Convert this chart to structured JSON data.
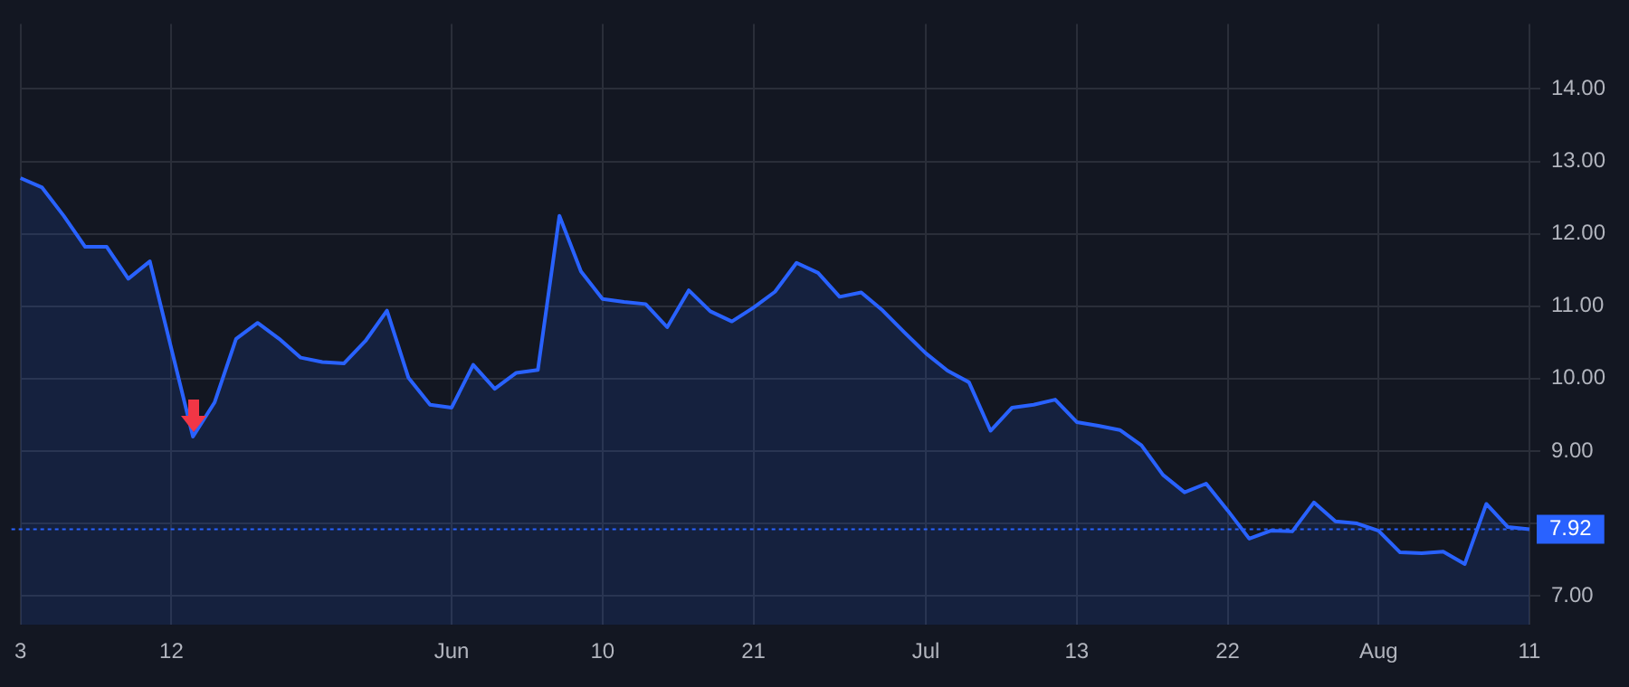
{
  "chart_data": {
    "type": "area",
    "categories": [
      "3",
      null,
      null,
      null,
      null,
      null,
      null,
      "12",
      null,
      null,
      null,
      null,
      null,
      null,
      null,
      null,
      null,
      null,
      null,
      null,
      "Jun",
      null,
      null,
      null,
      null,
      null,
      null,
      "10",
      null,
      null,
      null,
      null,
      null,
      null,
      "21",
      null,
      null,
      null,
      null,
      null,
      null,
      null,
      "Jul",
      null,
      null,
      null,
      null,
      null,
      null,
      "13",
      null,
      null,
      null,
      null,
      null,
      null,
      "22",
      null,
      null,
      null,
      null,
      null,
      null,
      "Aug",
      null,
      null,
      null,
      null,
      null,
      null,
      "11"
    ],
    "series": [
      {
        "color": "#2962ff",
        "values": [
          12.77,
          12.64,
          12.25,
          11.82,
          11.82,
          11.38,
          11.62,
          10.41,
          9.2,
          9.67,
          10.55,
          10.77,
          10.55,
          10.29,
          10.23,
          10.21,
          10.52,
          10.94,
          10.01,
          9.64,
          9.6,
          10.19,
          9.86,
          10.08,
          10.12,
          12.25,
          11.48,
          11.1,
          11.06,
          11.03,
          10.71,
          11.22,
          10.93,
          10.79,
          10.98,
          11.2,
          11.6,
          11.46,
          11.13,
          11.19,
          10.94,
          10.64,
          10.35,
          10.11,
          9.95,
          9.28,
          9.6,
          9.64,
          9.71,
          9.4,
          9.35,
          9.29,
          9.08,
          8.67,
          8.43,
          8.55,
          8.18,
          7.79,
          7.9,
          7.89,
          8.29,
          8.03,
          8.0,
          7.9,
          7.6,
          7.59,
          7.61,
          7.44,
          8.27,
          7.95,
          7.92
        ]
      }
    ],
    "ylim": [
      6.6,
      14.9
    ],
    "yticks": [
      {
        "value": 7,
        "label": "7.00"
      },
      {
        "value": 8,
        "label": null
      },
      {
        "value": 9,
        "label": "9.00"
      },
      {
        "value": 10,
        "label": "10.00"
      },
      {
        "value": 11,
        "label": "11.00"
      },
      {
        "value": 12,
        "label": "12.00"
      },
      {
        "value": 13,
        "label": "13.00"
      },
      {
        "value": 14,
        "label": "14.00"
      }
    ],
    "ref_lines": [
      {
        "axis": "y",
        "value": 7.92,
        "label": "7.92",
        "color": "#2962ff",
        "line_style": "dotted"
      }
    ],
    "grid": true,
    "legend": false,
    "marker": "none",
    "line_style": "solid"
  }
}
